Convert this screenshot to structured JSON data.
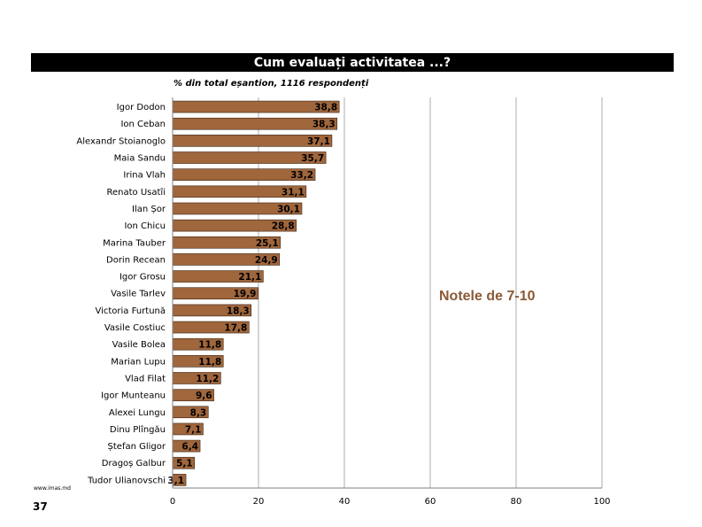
{
  "header": {
    "title": "Cum evaluați activitatea ...?",
    "subtitle": "% din total eșantion, 1116 respondenți"
  },
  "annotation": "Notele de 7-10",
  "footer": {
    "url": "www.imas.md",
    "page_number": "37"
  },
  "colors": {
    "bar": "#A0663C",
    "bar_stroke": "#3a2414",
    "annotation": "#8B5A35"
  },
  "chart_data": {
    "type": "bar",
    "orientation": "horizontal",
    "categories": [
      "Igor Dodon",
      "Ion Ceban",
      "Alexandr Stoianoglo",
      "Maia Sandu",
      "Irina Vlah",
      "Renato Usatîi",
      "Ilan Șor",
      "Ion Chicu",
      "Marina Tauber",
      "Dorin Recean",
      "Igor Grosu",
      "Vasile Tarlev",
      "Victoria Furtună",
      "Vasile Costiuc",
      "Vasile Bolea",
      "Marian Lupu",
      "Vlad Filat",
      "Igor Munteanu",
      "Alexei Lungu",
      "Dinu Plîngău",
      "Ștefan Gligor",
      "Dragoș Galbur",
      "Tudor Ulianovschi"
    ],
    "values": [
      38.8,
      38.3,
      37.1,
      35.7,
      33.2,
      31.1,
      30.1,
      28.8,
      25.1,
      24.9,
      21.1,
      19.9,
      18.3,
      17.8,
      11.8,
      11.8,
      11.2,
      9.6,
      8.3,
      7.1,
      6.4,
      5.1,
      3.1
    ],
    "value_labels": [
      "38,8",
      "38,3",
      "37,1",
      "35,7",
      "33,2",
      "31,1",
      "30,1",
      "28,8",
      "25,1",
      "24,9",
      "21,1",
      "19,9",
      "18,3",
      "17,8",
      "11,8",
      "11,8",
      "11,2",
      "9,6",
      "8,3",
      "7,1",
      "6,4",
      "5,1",
      "3,1"
    ],
    "xlim": [
      0,
      100
    ],
    "x_ticks": [
      0,
      20,
      40,
      60,
      80,
      100
    ],
    "grid": "vertical"
  }
}
